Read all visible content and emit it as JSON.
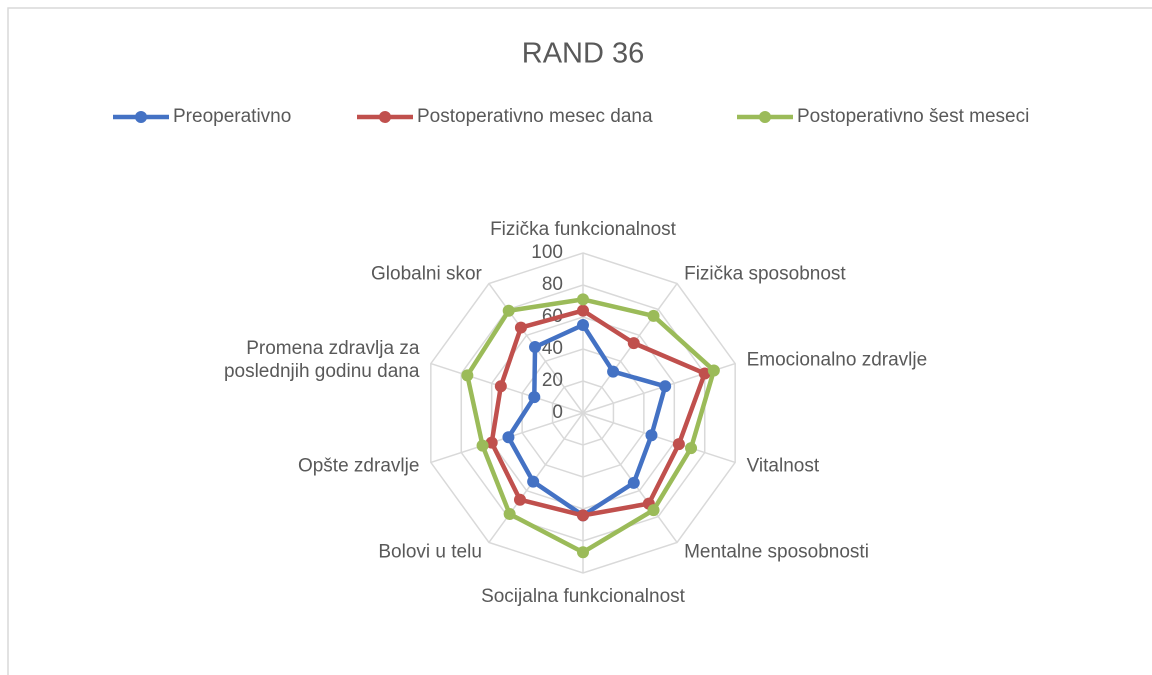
{
  "chart_data": {
    "type": "radar",
    "title": "RAND 36",
    "categories": [
      "Fizička funkcionalnost",
      "Fizička sposobnost",
      "Emocionalno zdravlje",
      "Vitalnost",
      "Mentalne sposobnosti",
      "Socijalna funkcionalnost",
      "Bolovi u telu",
      "Opšte zdravlje",
      "Promena zdravlja za poslednjih godinu dana",
      "Globalni skor"
    ],
    "series": [
      {
        "name": "Preoperativno",
        "color": "#4472c4",
        "values": [
          55,
          32,
          54,
          45,
          54,
          64,
          53,
          49,
          32,
          51
        ]
      },
      {
        "name": "Postoperativno mesec dana",
        "color": "#c0504d",
        "values": [
          64,
          54,
          80,
          63,
          70,
          64,
          67,
          60,
          54,
          66
        ]
      },
      {
        "name": "Postoperativno šest meseci",
        "color": "#9bbb59",
        "values": [
          71,
          75,
          86,
          71,
          75,
          87,
          78,
          66,
          76,
          79
        ]
      }
    ],
    "ylim": [
      0,
      100
    ],
    "yticks": [
      0,
      20,
      40,
      60,
      80,
      100
    ],
    "grid": true,
    "legend": "top"
  }
}
